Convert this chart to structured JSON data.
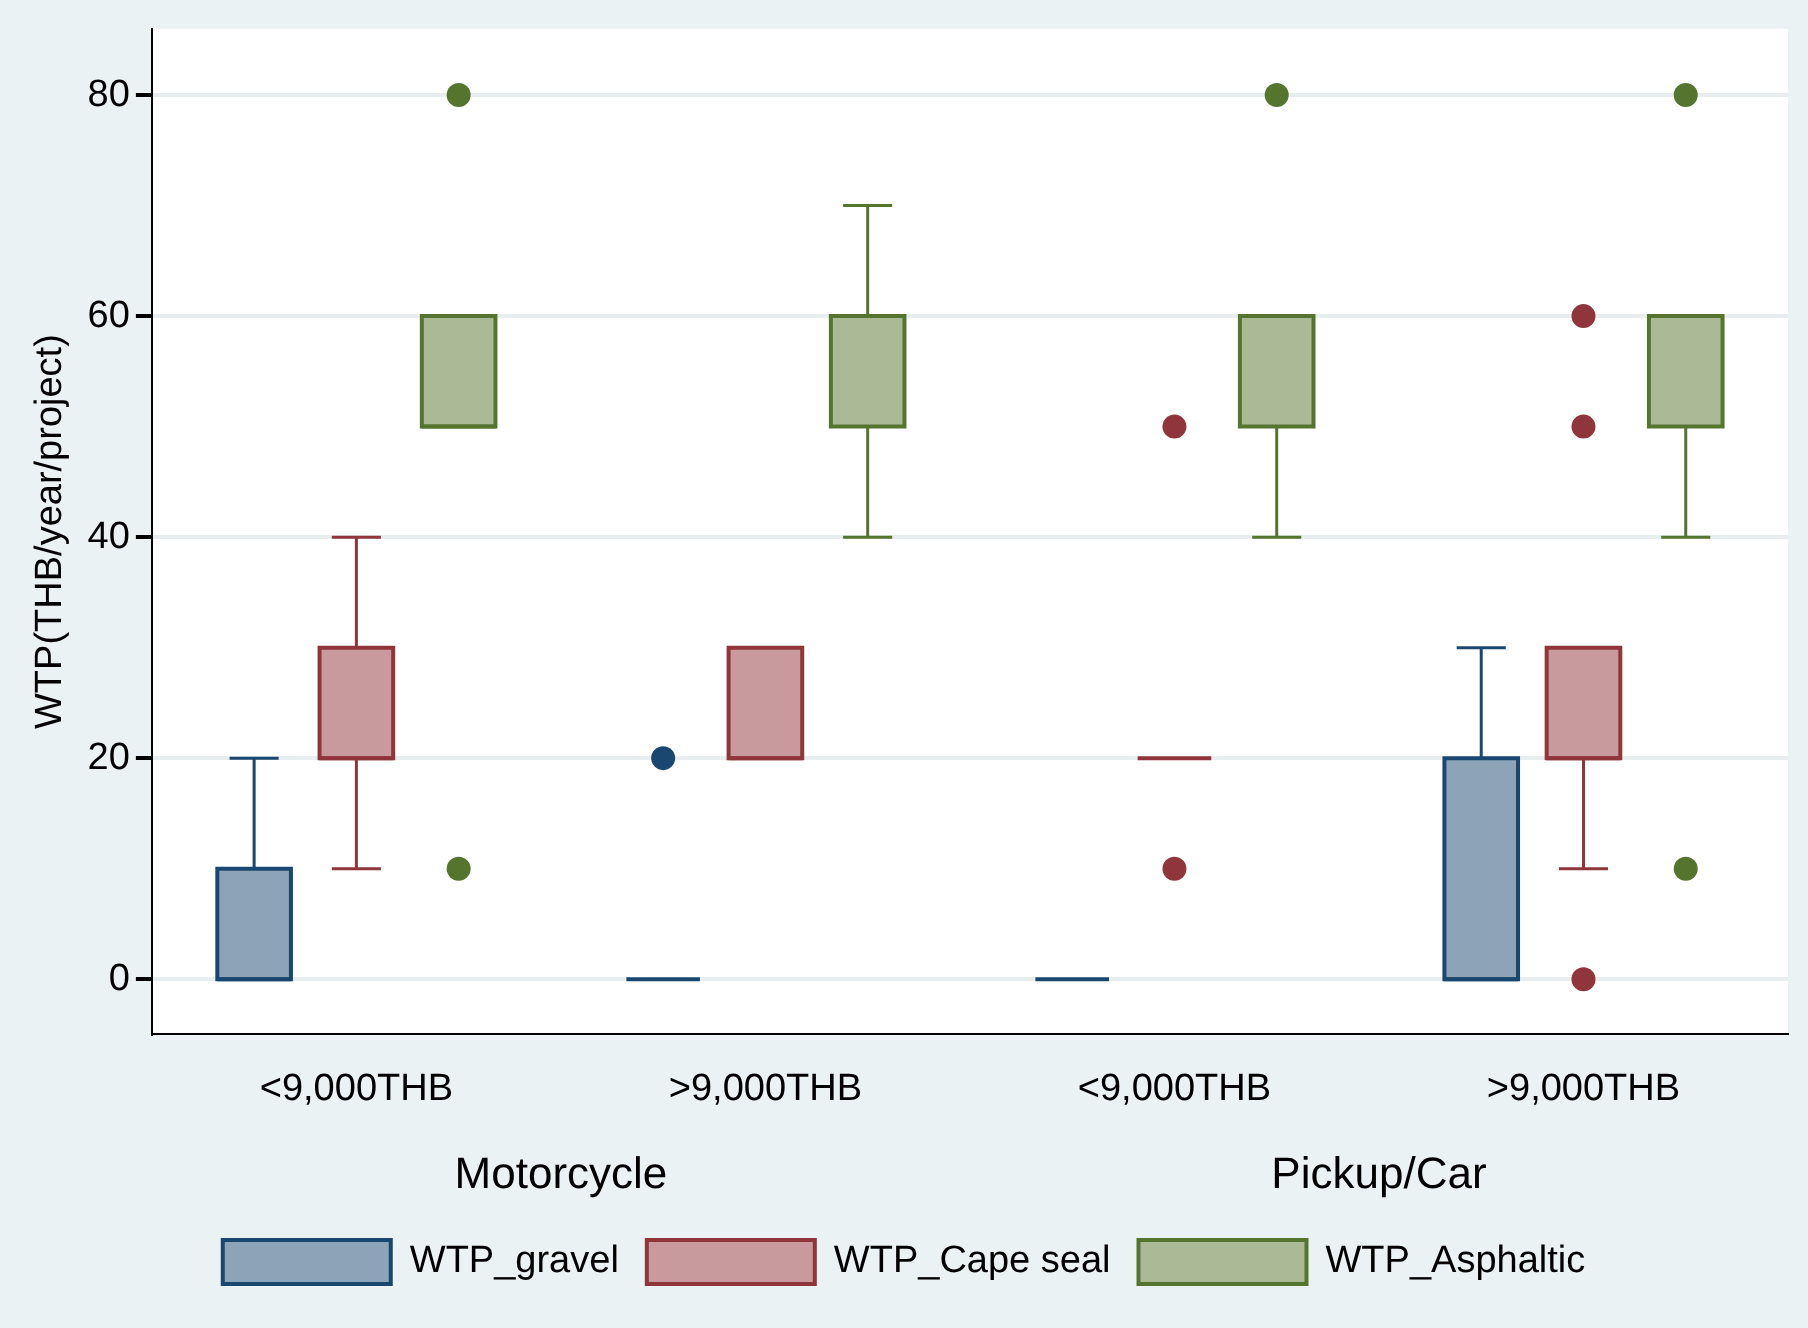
{
  "chart_data": {
    "type": "box",
    "categories": [
      "<9,000THB",
      ">9,000THB",
      "<9,000THB",
      ">9,000THB"
    ],
    "ylabel": "WTP(THB/year/project)",
    "ylim": [
      -5,
      86
    ],
    "yticks": [
      0,
      20,
      40,
      60,
      80
    ],
    "grid": "y",
    "legend": "bottom",
    "annotations": [
      "Motorcycle",
      "Pickup/Car"
    ],
    "series": [
      {
        "name": "WTP_gravel",
        "color": "#1a476f",
        "boxes": [
          {
            "low": 0,
            "q1": 0,
            "median": 0,
            "q3": 10,
            "high": 20
          },
          {
            "low": 0,
            "q1": 0,
            "median": 0,
            "q3": 0,
            "high": 0,
            "outliers": [
              20
            ]
          },
          {
            "low": 0,
            "q1": 0,
            "median": 0,
            "q3": 0,
            "high": 0
          },
          {
            "low": 0,
            "q1": 0,
            "median": 0,
            "q3": 20,
            "high": 30
          }
        ]
      },
      {
        "name": "WTP_Cape seal",
        "color": "#90353b",
        "boxes": [
          {
            "low": 10,
            "q1": 20,
            "median": 20,
            "q3": 30,
            "high": 40
          },
          {
            "low": 20,
            "q1": 20,
            "median": 20,
            "q3": 30,
            "high": 30
          },
          {
            "low": 20,
            "q1": 20,
            "median": 20,
            "q3": 20,
            "high": 20,
            "outliers": [
              50,
              10
            ]
          },
          {
            "low": 10,
            "q1": 20,
            "median": 20,
            "q3": 30,
            "high": 30,
            "outliers": [
              60,
              50,
              0
            ]
          }
        ]
      },
      {
        "name": "WTP_Asphaltic",
        "color": "#55752f",
        "boxes": [
          {
            "low": 50,
            "q1": 50,
            "median": 50,
            "q3": 60,
            "high": 60,
            "outliers": [
              80,
              10
            ]
          },
          {
            "low": 40,
            "q1": 50,
            "median": 60,
            "q3": 60,
            "high": 70
          },
          {
            "low": 40,
            "q1": 50,
            "median": 60,
            "q3": 60,
            "high": 60,
            "outliers": [
              80
            ]
          },
          {
            "low": 40,
            "q1": 50,
            "median": 60,
            "q3": 60,
            "high": 60,
            "outliers": [
              80,
              10
            ]
          }
        ]
      }
    ]
  }
}
